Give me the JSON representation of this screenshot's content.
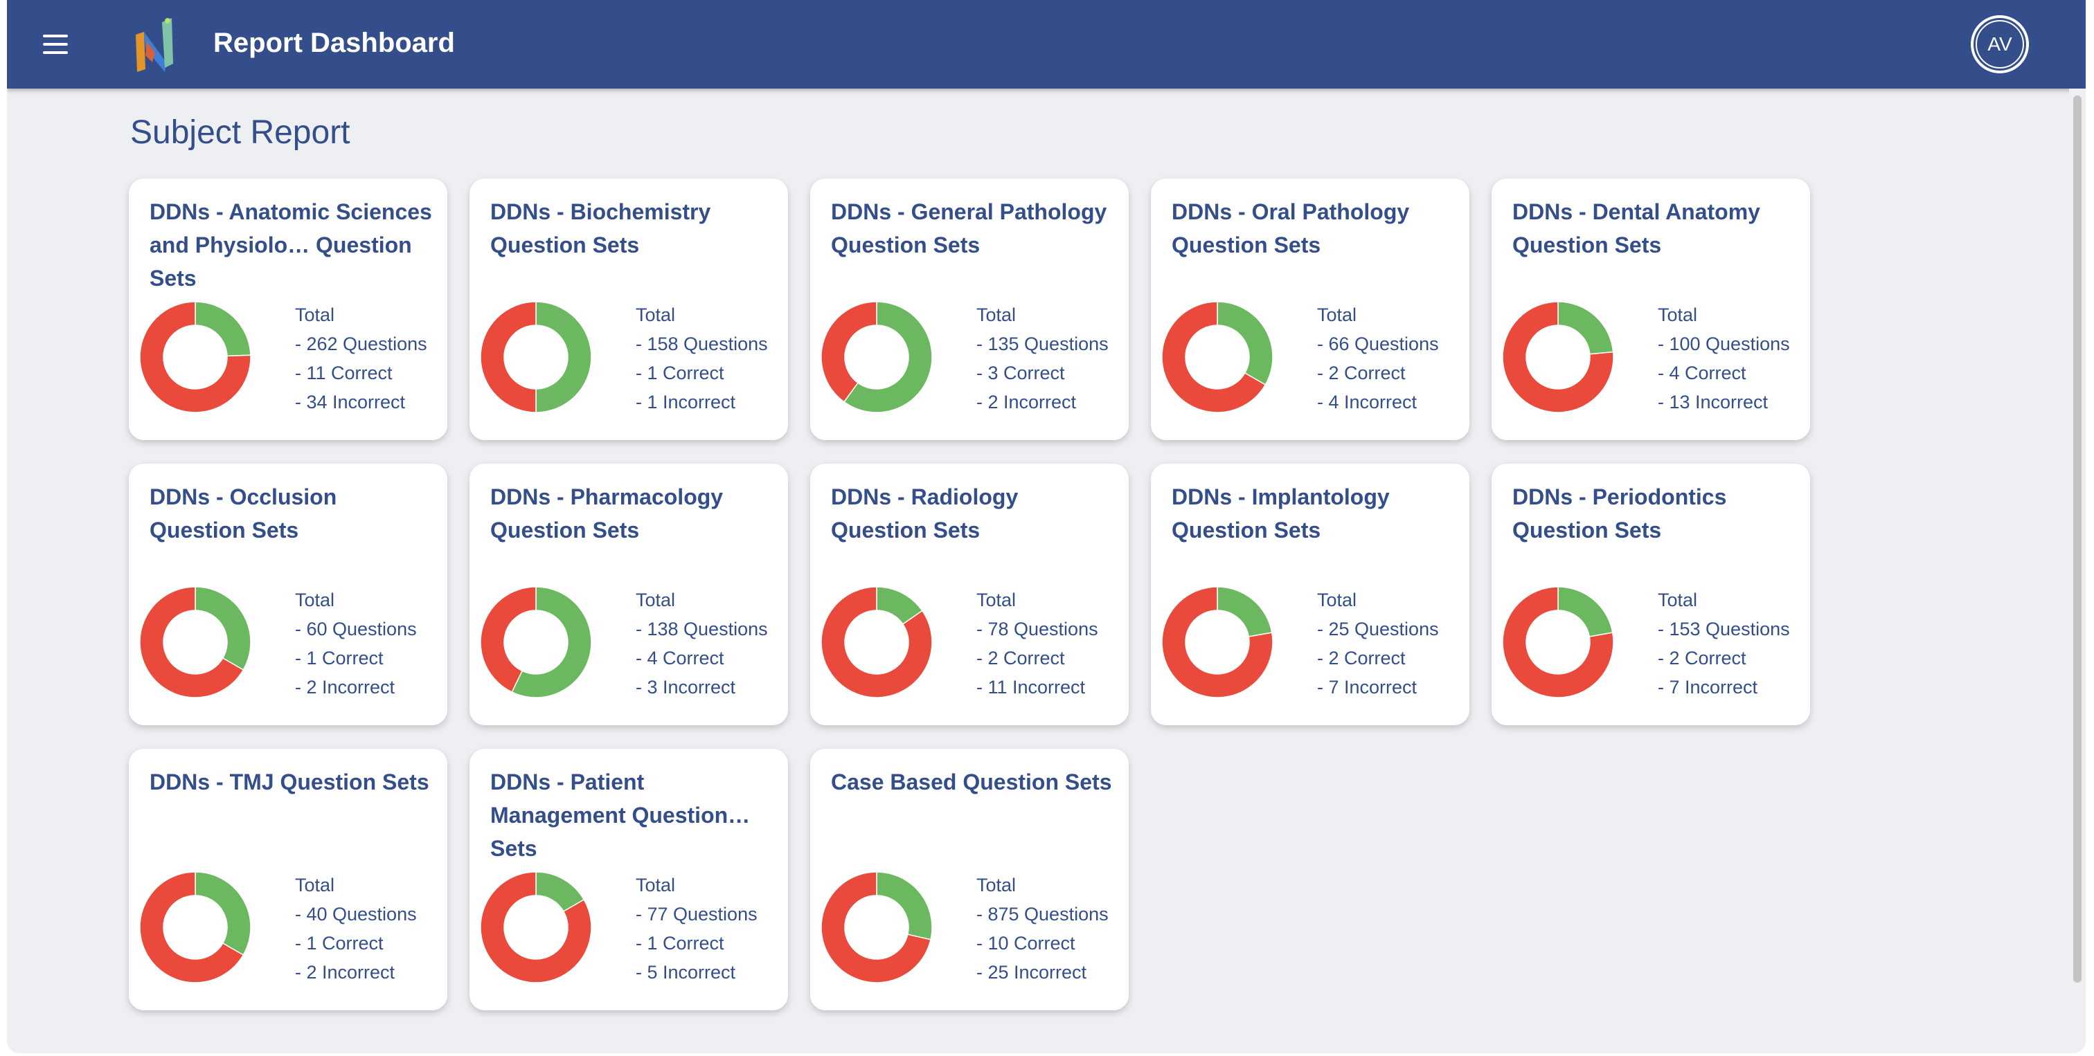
{
  "header": {
    "title": "Report Dashboard",
    "avatar_initials": "AV",
    "menu_icon": "hamburger-icon",
    "logo_icon": "app-logo-icon"
  },
  "page": {
    "heading": "Subject Report"
  },
  "colors": {
    "correct": "#6cb860",
    "incorrect": "#ea4a3c",
    "primary": "#334e8a"
  },
  "cards": [
    {
      "title": "DDNs - Anatomic Sciences and Physiolo… Question Sets",
      "total_label": "Total",
      "questions": "- 262 Questions",
      "correct": "- 11 Correct",
      "incorrect": "- 34 Incorrect",
      "correct_count": 11,
      "incorrect_count": 34
    },
    {
      "title": "DDNs - Biochemistry Question Sets",
      "total_label": "Total",
      "questions": "- 158 Questions",
      "correct": "- 1 Correct",
      "incorrect": "- 1 Incorrect",
      "correct_count": 1,
      "incorrect_count": 1
    },
    {
      "title": "DDNs - General Pathology Question Sets",
      "total_label": "Total",
      "questions": "- 135 Questions",
      "correct": "- 3 Correct",
      "incorrect": "- 2 Incorrect",
      "correct_count": 3,
      "incorrect_count": 2
    },
    {
      "title": "DDNs - Oral Pathology Question Sets",
      "total_label": "Total",
      "questions": "- 66 Questions",
      "correct": "- 2 Correct",
      "incorrect": "- 4 Incorrect",
      "correct_count": 2,
      "incorrect_count": 4
    },
    {
      "title": "DDNs - Dental Anatomy Question Sets",
      "total_label": "Total",
      "questions": "- 100 Questions",
      "correct": "- 4 Correct",
      "incorrect": "- 13 Incorrect",
      "correct_count": 4,
      "incorrect_count": 13
    },
    {
      "title": "DDNs - Occlusion Question Sets",
      "total_label": "Total",
      "questions": "- 60 Questions",
      "correct": "- 1 Correct",
      "incorrect": "- 2 Incorrect",
      "correct_count": 1,
      "incorrect_count": 2
    },
    {
      "title": "DDNs - Pharmacology Question Sets",
      "total_label": "Total",
      "questions": "- 138 Questions",
      "correct": "- 4 Correct",
      "incorrect": "- 3 Incorrect",
      "correct_count": 4,
      "incorrect_count": 3
    },
    {
      "title": "DDNs - Radiology Question Sets",
      "total_label": "Total",
      "questions": "- 78 Questions",
      "correct": "- 2 Correct",
      "incorrect": "- 11 Incorrect",
      "correct_count": 2,
      "incorrect_count": 11
    },
    {
      "title": "DDNs - Implantology Question Sets",
      "total_label": "Total",
      "questions": "- 25 Questions",
      "correct": "- 2 Correct",
      "incorrect": "- 7 Incorrect",
      "correct_count": 2,
      "incorrect_count": 7
    },
    {
      "title": "DDNs - Periodontics Question Sets",
      "total_label": "Total",
      "questions": "- 153 Questions",
      "correct": "- 2 Correct",
      "incorrect": "- 7 Incorrect",
      "correct_count": 2,
      "incorrect_count": 7
    },
    {
      "title": "DDNs - TMJ Question Sets",
      "total_label": "Total",
      "questions": "- 40 Questions",
      "correct": "- 1 Correct",
      "incorrect": "- 2 Incorrect",
      "correct_count": 1,
      "incorrect_count": 2
    },
    {
      "title": "DDNs - Patient Management Question… Sets",
      "total_label": "Total",
      "questions": "- 77 Questions",
      "correct": "- 1 Correct",
      "incorrect": "- 5 Incorrect",
      "correct_count": 1,
      "incorrect_count": 5
    },
    {
      "title": "Case Based Question Sets",
      "total_label": "Total",
      "questions": "- 875 Questions",
      "correct": "- 10 Correct",
      "incorrect": "- 25 Incorrect",
      "correct_count": 10,
      "incorrect_count": 25
    }
  ]
}
